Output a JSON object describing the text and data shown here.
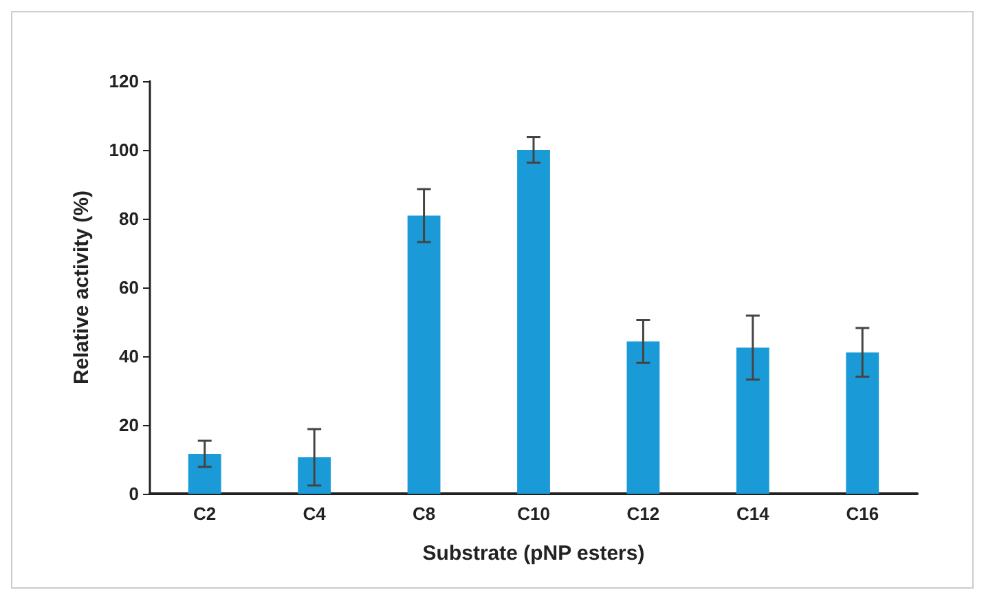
{
  "chart_data": {
    "type": "bar",
    "xlabel": "Substrate (pNP esters)",
    "ylabel": "Relative activity (%)",
    "categories": [
      "C2",
      "C4",
      "C8",
      "C10",
      "C12",
      "C14",
      "C16"
    ],
    "values": [
      11.6,
      10.6,
      80.9,
      100,
      44.3,
      42.5,
      41.1
    ],
    "errors": [
      3.8,
      8.2,
      7.7,
      3.7,
      6.2,
      9.3,
      7.1
    ],
    "color": "#1a9bd7",
    "ylim": [
      0,
      120
    ],
    "yticks": [
      0,
      20,
      40,
      60,
      80,
      100,
      120
    ],
    "grid": false
  }
}
